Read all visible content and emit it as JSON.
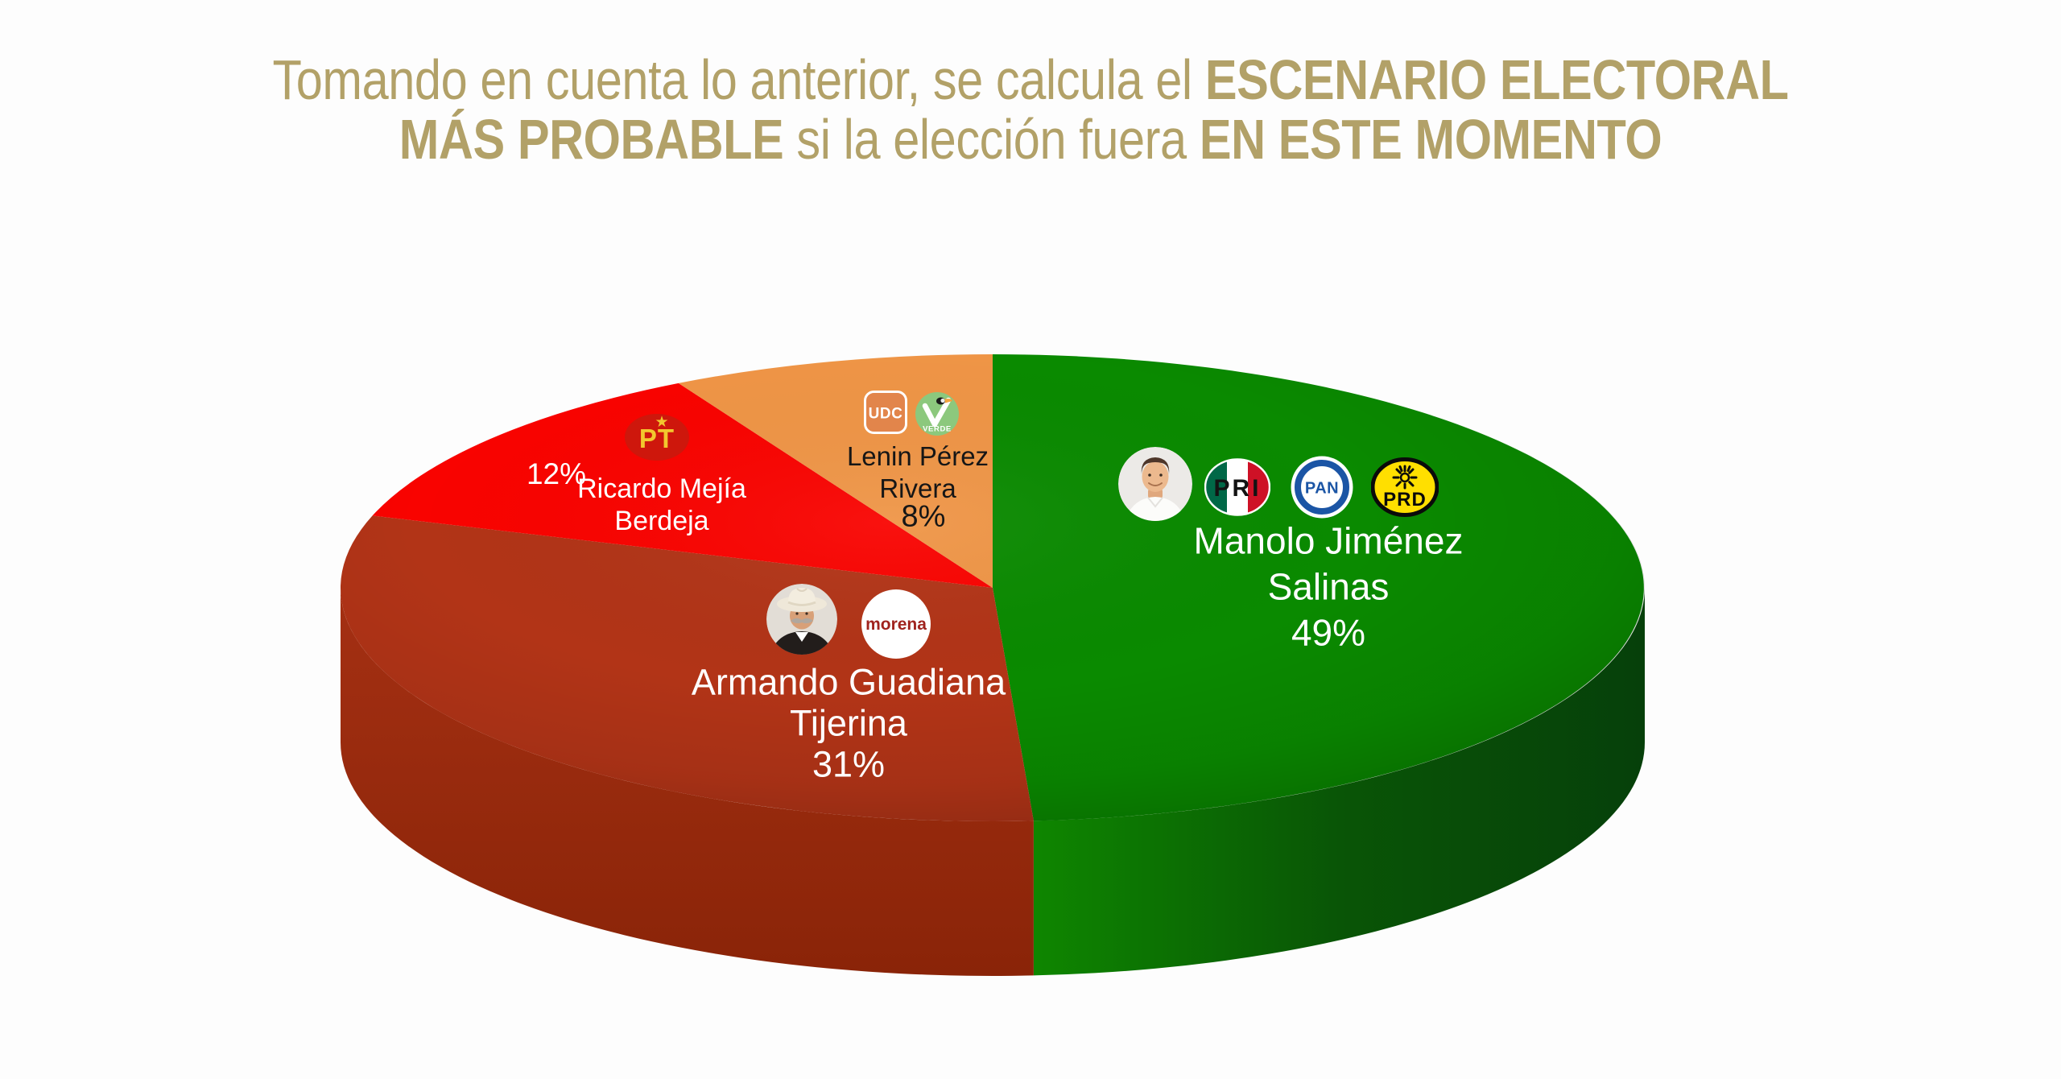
{
  "page": {
    "background": "#FDFDFD"
  },
  "title": {
    "color": "#B2A168",
    "lines": [
      {
        "segments": [
          {
            "text": "Tomando en cuenta lo anterior, se calcula el ",
            "bold": false
          },
          {
            "text": "ESCENARIO ELECTORAL",
            "bold": true
          }
        ]
      },
      {
        "segments": [
          {
            "text": "MÁS PROBABLE",
            "bold": true
          },
          {
            "text": " si la elección fuera ",
            "bold": false
          },
          {
            "text": "EN ESTE MOMENTO",
            "bold": true
          }
        ]
      }
    ]
  },
  "chart_data": {
    "type": "pie",
    "style": "3d",
    "unit": "percent",
    "direction": "clockwise",
    "start_angle_deg": 0,
    "title": "Escenario electoral más probable si la elección fuera en este momento",
    "slices": [
      {
        "candidate": "Manolo Jiménez Salinas",
        "parties": [
          "PRI",
          "PAN",
          "PRD"
        ],
        "value": 49,
        "pct_label": "49%",
        "color": "#0A8A00",
        "side": {
          "direction": "horizontal",
          "stops": [
            "#0E8600",
            "#095506",
            "#06400A"
          ]
        }
      },
      {
        "candidate": "Armando Guadiana Tijerina",
        "parties": [
          "MORENA"
        ],
        "value": 31,
        "pct_label": "31%",
        "color": "#B23417",
        "side": {
          "direction": "vertical",
          "stops": [
            "#A53013",
            "#8A2408"
          ]
        }
      },
      {
        "candidate": "Ricardo Mejía Berdeja",
        "parties": [
          "PT"
        ],
        "value": 12,
        "pct_label": "12%",
        "color": "#F90300"
      },
      {
        "candidate": "Lenin Pérez Rivera",
        "parties": [
          "UDC",
          "PVEM"
        ],
        "value": 8,
        "pct_label": "8%",
        "color": "#EF9546"
      }
    ]
  },
  "labels": {
    "manolo": {
      "line1": "Manolo Jiménez",
      "line2": "Salinas",
      "pct": "49%"
    },
    "guadiana": {
      "line1": "Armando Guadiana",
      "line2": "Tijerina",
      "pct": "31%"
    },
    "ricardo": {
      "line1": "Ricardo Mejía",
      "line2": "Berdeja",
      "pct": "12%"
    },
    "lenin": {
      "line1": "Lenin Pérez",
      "line2": "Rivera",
      "pct": "8%"
    }
  },
  "logos": {
    "pt": "PT",
    "udc": "UDC",
    "verde": "VERDE",
    "pri": "PRI",
    "pan": "PAN",
    "prd": "PRD",
    "morena": "morena"
  }
}
